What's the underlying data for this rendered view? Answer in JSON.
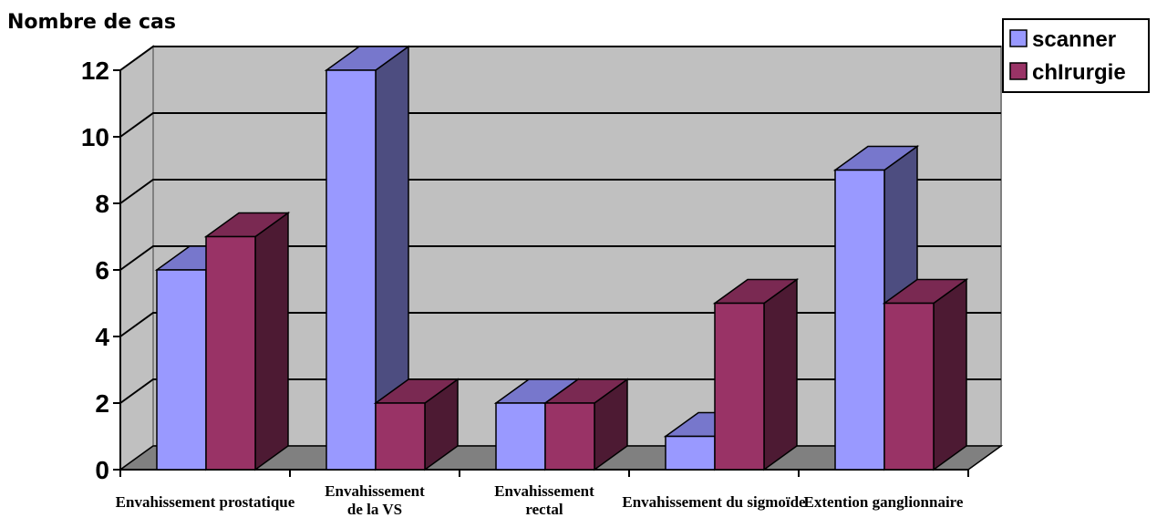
{
  "chart_data": {
    "type": "bar",
    "title": "",
    "ylabel": "Nombre de cas",
    "xlabel": "",
    "ylim": [
      0,
      12
    ],
    "yticks": [
      0,
      2,
      4,
      6,
      8,
      10,
      12
    ],
    "grid": true,
    "three_d": true,
    "legend_position": "top-right",
    "categories": [
      [
        "Envahissement prostatique"
      ],
      [
        "Envahissement",
        "de la VS"
      ],
      [
        "Envahissement",
        "rectal"
      ],
      [
        "Envahissement du sigmoïde"
      ],
      [
        "Extention ganglionnaire"
      ]
    ],
    "series": [
      {
        "name": "scanner",
        "values": [
          6,
          12,
          2,
          1,
          9
        ],
        "color": "#9999ff",
        "side_color": "#4d4d80",
        "top_color": "#7777cc"
      },
      {
        "name": "chIrurgie",
        "values": [
          7,
          2,
          2,
          5,
          5
        ],
        "color": "#993366",
        "side_color": "#4d1a33",
        "top_color": "#7a2952"
      }
    ],
    "wall_color": "#c0c0c0",
    "floor_color": "#808080"
  }
}
